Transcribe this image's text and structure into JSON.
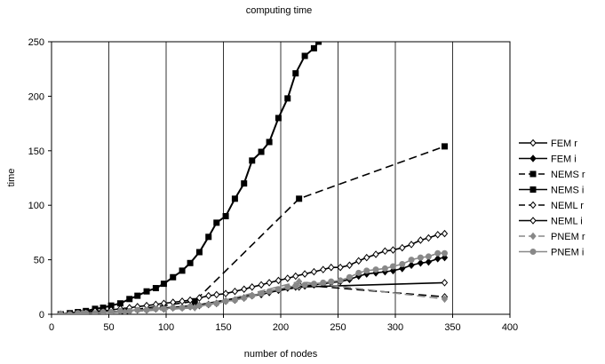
{
  "chart_data": {
    "type": "line",
    "title": "computing time",
    "xlabel": "number of nodes",
    "ylabel": "time",
    "xlim": [
      0,
      400
    ],
    "ylim": [
      0,
      250
    ],
    "xticks": [
      0,
      50,
      100,
      150,
      200,
      250,
      300,
      350,
      400
    ],
    "yticks": [
      0,
      50,
      100,
      150,
      200,
      250
    ],
    "grid": "vertical",
    "legend_position": "right",
    "series": [
      {
        "name": "FEM r",
        "color": "#000000",
        "dash": "solid",
        "marker": "open-diamond",
        "x": [
          8,
          27,
          64,
          125,
          216,
          343
        ],
        "y": [
          0,
          1,
          3,
          8,
          25,
          29
        ]
      },
      {
        "name": "FEM i",
        "color": "#000000",
        "dash": "solid",
        "marker": "filled-diamond",
        "x": [
          8,
          16,
          23,
          30,
          38,
          45,
          52,
          60,
          68,
          75,
          83,
          91,
          98,
          106,
          114,
          121,
          129,
          137,
          144,
          152,
          160,
          168,
          175,
          183,
          190,
          198,
          206,
          213,
          221,
          229,
          237,
          244,
          252,
          260,
          268,
          275,
          283,
          291,
          298,
          306,
          314,
          322,
          329,
          337,
          343
        ],
        "y": [
          0,
          0,
          1,
          1,
          1,
          2,
          2,
          3,
          3,
          4,
          4,
          5,
          5,
          6,
          6,
          7,
          8,
          9,
          10,
          12,
          13,
          15,
          17,
          18,
          20,
          22,
          24,
          25,
          26,
          27,
          28,
          29,
          30,
          32,
          35,
          37,
          38,
          39,
          40,
          42,
          45,
          47,
          48,
          51,
          52
        ]
      },
      {
        "name": "NEMS r",
        "color": "#000000",
        "dash": "dashed",
        "marker": "filled-square",
        "x": [
          8,
          27,
          64,
          125,
          216,
          343
        ],
        "y": [
          0,
          1,
          3,
          12,
          106,
          154
        ]
      },
      {
        "name": "NEMS i",
        "color": "#000000",
        "dash": "solid",
        "marker": "filled-square",
        "x": [
          8,
          16,
          23,
          30,
          38,
          45,
          52,
          60,
          68,
          75,
          83,
          91,
          98,
          106,
          114,
          121,
          129,
          137,
          144,
          152,
          160,
          168,
          175,
          183,
          190,
          198,
          206,
          213,
          221,
          229,
          233
        ],
        "y": [
          0,
          1,
          2,
          3,
          5,
          6,
          8,
          10,
          14,
          17,
          21,
          24,
          28,
          34,
          40,
          47,
          57,
          71,
          84,
          90,
          106,
          120,
          141,
          149,
          158,
          180,
          198,
          221,
          237,
          244,
          250
        ]
      },
      {
        "name": "NEML r",
        "color": "#000000",
        "dash": "dashed",
        "marker": "open-diamond",
        "x": [
          8,
          27,
          64,
          125,
          216,
          343
        ],
        "y": [
          0,
          1,
          2,
          7,
          27,
          16
        ]
      },
      {
        "name": "NEML i",
        "color": "#000000",
        "dash": "solid",
        "marker": "open-diamond",
        "x": [
          8,
          16,
          23,
          30,
          38,
          45,
          52,
          60,
          68,
          75,
          83,
          91,
          98,
          106,
          114,
          121,
          129,
          137,
          144,
          152,
          160,
          168,
          175,
          183,
          190,
          198,
          206,
          213,
          221,
          229,
          237,
          244,
          252,
          260,
          268,
          275,
          283,
          291,
          298,
          306,
          314,
          322,
          329,
          337,
          343
        ],
        "y": [
          0,
          0,
          1,
          2,
          3,
          3,
          4,
          5,
          6,
          7,
          8,
          9,
          10,
          11,
          12,
          13,
          15,
          17,
          18,
          19,
          21,
          23,
          25,
          27,
          29,
          31,
          33,
          35,
          37,
          39,
          41,
          43,
          43,
          45,
          49,
          52,
          55,
          58,
          59,
          61,
          64,
          68,
          70,
          73,
          74
        ]
      },
      {
        "name": "PNEM r",
        "color": "#888888",
        "dash": "dashed",
        "marker": "filled-diamond",
        "x": [
          8,
          27,
          64,
          125,
          216,
          343
        ],
        "y": [
          0,
          1,
          2,
          6,
          30,
          14
        ]
      },
      {
        "name": "PNEM i",
        "color": "#888888",
        "dash": "solid",
        "marker": "filled-circle",
        "x": [
          8,
          16,
          23,
          30,
          38,
          45,
          52,
          60,
          68,
          75,
          83,
          91,
          98,
          106,
          114,
          121,
          129,
          137,
          144,
          152,
          160,
          168,
          175,
          183,
          190,
          198,
          206,
          213,
          221,
          229,
          237,
          244,
          252,
          260,
          268,
          275,
          283,
          291,
          298,
          306,
          314,
          322,
          329,
          337,
          343
        ],
        "y": [
          0,
          0,
          1,
          1,
          1,
          2,
          2,
          3,
          3,
          4,
          4,
          5,
          5,
          6,
          6,
          7,
          8,
          9,
          10,
          12,
          13,
          15,
          17,
          19,
          21,
          23,
          25,
          26,
          27,
          28,
          29,
          30,
          31,
          34,
          38,
          40,
          41,
          42,
          44,
          46,
          50,
          52,
          53,
          56,
          56
        ]
      }
    ]
  }
}
